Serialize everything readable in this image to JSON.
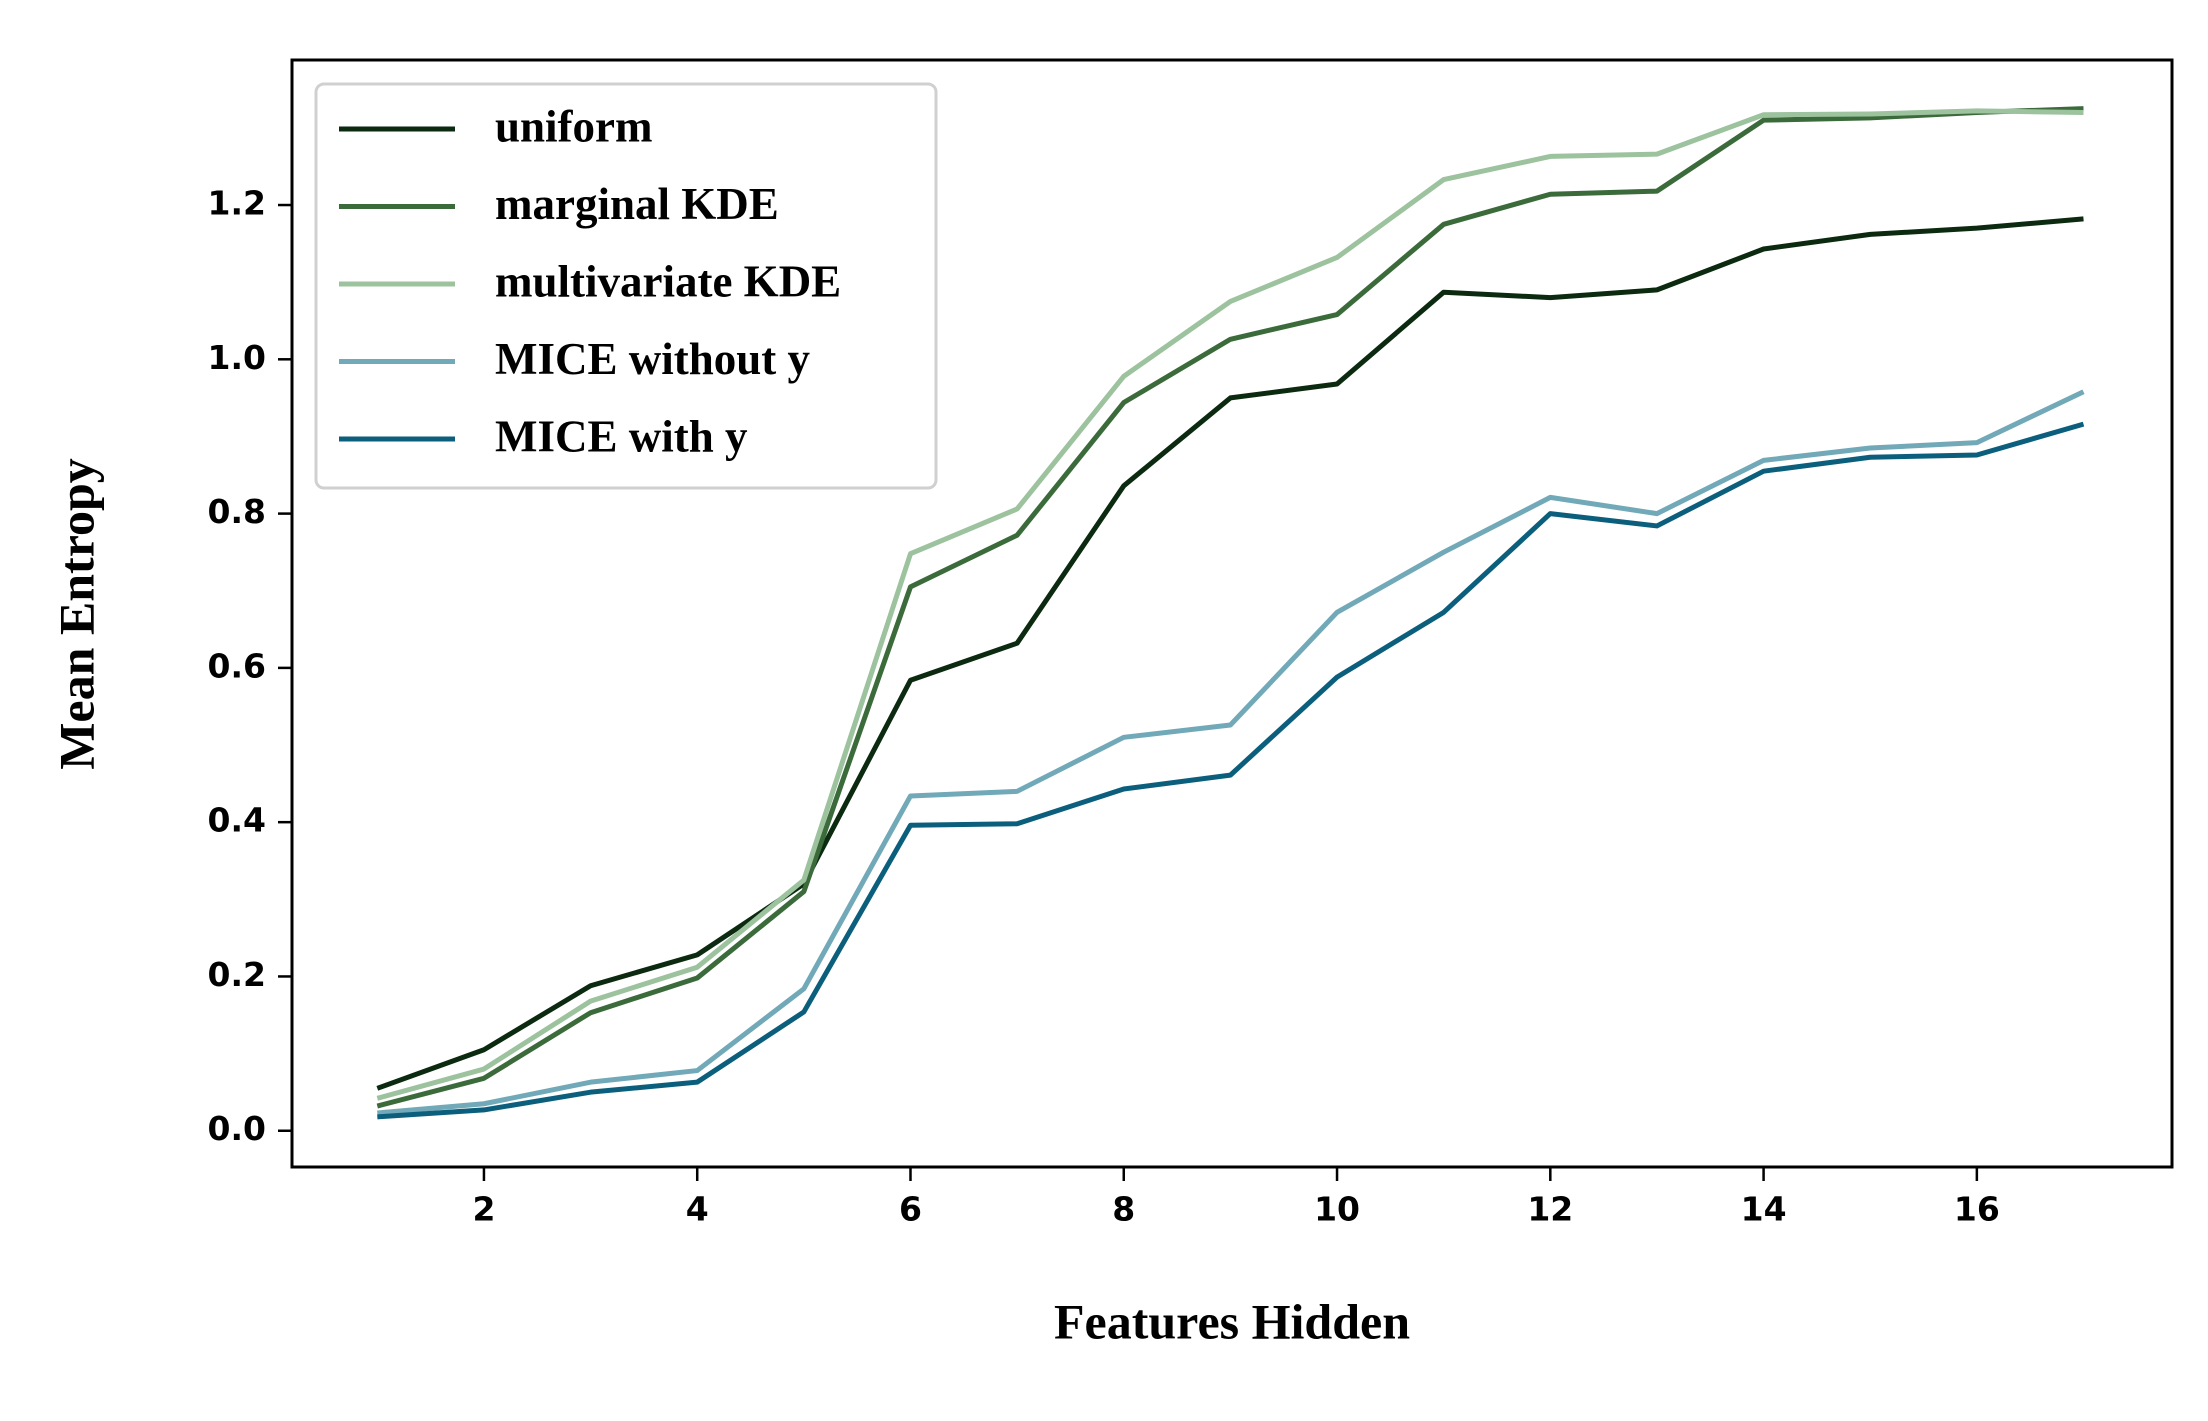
{
  "chart_data": {
    "type": "line",
    "x_label": "Features Hidden",
    "y_label": "Mean Entropy",
    "x": [
      1,
      2,
      3,
      4,
      5,
      6,
      7,
      8,
      9,
      10,
      11,
      12,
      13,
      14,
      15,
      16,
      17
    ],
    "series": [
      {
        "name": "uniform",
        "color": "#0b2a10",
        "values": [
          0.055,
          0.105,
          0.188,
          0.228,
          0.32,
          0.584,
          0.632,
          0.836,
          0.95,
          0.968,
          1.087,
          1.08,
          1.09,
          1.143,
          1.162,
          1.17,
          1.182
        ]
      },
      {
        "name": "marginal KDE",
        "color": "#3b6b3a",
        "values": [
          0.032,
          0.068,
          0.153,
          0.198,
          0.31,
          0.705,
          0.772,
          0.944,
          1.026,
          1.058,
          1.175,
          1.214,
          1.218,
          1.31,
          1.313,
          1.32,
          1.325
        ]
      },
      {
        "name": "multivariate KDE",
        "color": "#9cc29e",
        "values": [
          0.042,
          0.08,
          0.168,
          0.212,
          0.325,
          0.748,
          0.806,
          0.978,
          1.075,
          1.132,
          1.233,
          1.263,
          1.266,
          1.317,
          1.318,
          1.322,
          1.32
        ]
      },
      {
        "name": "MICE without y",
        "color": "#71a9b8",
        "values": [
          0.023,
          0.035,
          0.063,
          0.078,
          0.184,
          0.434,
          0.44,
          0.51,
          0.526,
          0.672,
          0.75,
          0.821,
          0.8,
          0.869,
          0.885,
          0.892,
          0.958
        ]
      },
      {
        "name": "MICE with y",
        "color": "#0b5f7c",
        "values": [
          0.018,
          0.027,
          0.05,
          0.063,
          0.154,
          0.396,
          0.398,
          0.443,
          0.461,
          0.588,
          0.672,
          0.8,
          0.784,
          0.855,
          0.873,
          0.876,
          0.916
        ]
      }
    ],
    "xlim": [
      0.2,
      17.83
    ],
    "ylim": [
      -0.047,
      1.388
    ],
    "xticks": [
      2,
      4,
      6,
      8,
      10,
      12,
      14,
      16
    ],
    "yticks": [
      {
        "value": 0,
        "label": "0.0"
      },
      0.2,
      0.4,
      0.6,
      0.8,
      {
        "value": 1,
        "label": "1.0"
      },
      1.2
    ],
    "legend": "upper left",
    "grid": false
  }
}
